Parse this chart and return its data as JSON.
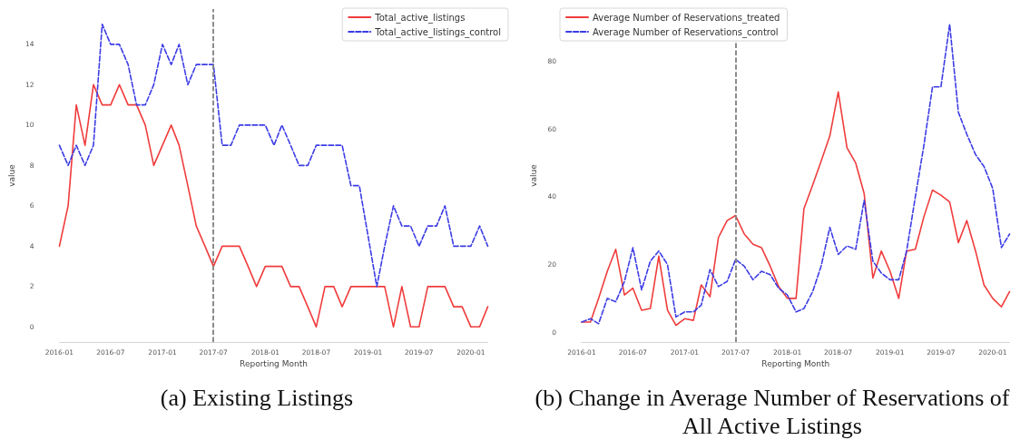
{
  "chart_data": [
    {
      "type": "line",
      "title": "(a) Existing Listings",
      "xlabel": "Reporting Month",
      "ylabel": "value",
      "x": [
        "2016-01",
        "2016-02",
        "2016-03",
        "2016-04",
        "2016-05",
        "2016-06",
        "2016-07",
        "2016-08",
        "2016-09",
        "2016-10",
        "2016-11",
        "2016-12",
        "2017-01",
        "2017-02",
        "2017-03",
        "2017-04",
        "2017-05",
        "2017-06",
        "2017-07",
        "2017-08",
        "2017-09",
        "2017-10",
        "2017-11",
        "2017-12",
        "2018-01",
        "2018-02",
        "2018-03",
        "2018-04",
        "2018-05",
        "2018-06",
        "2018-07",
        "2018-08",
        "2018-09",
        "2018-10",
        "2018-11",
        "2018-12",
        "2019-01",
        "2019-02",
        "2019-03",
        "2019-04",
        "2019-05",
        "2019-06",
        "2019-07",
        "2019-08",
        "2019-09",
        "2019-10",
        "2019-11",
        "2019-12",
        "2020-01",
        "2020-02",
        "2020-03"
      ],
      "series": [
        {
          "name": "Total_active_listings",
          "color": "#f03c3c",
          "line_style": "solid",
          "values": [
            4,
            6,
            11,
            9,
            12,
            11,
            11,
            12,
            11,
            11,
            10,
            8,
            9,
            10,
            9,
            7,
            5,
            4,
            3,
            4,
            4,
            4,
            3,
            2,
            3,
            3,
            3,
            2,
            2,
            1,
            0,
            2,
            2,
            1,
            2,
            2,
            2,
            2,
            2,
            0,
            2,
            0,
            0,
            2,
            2,
            2,
            1,
            1,
            0,
            0,
            1
          ]
        },
        {
          "name": "Total_active_listings_control",
          "color": "#3c3ce6",
          "line_style": "dashed",
          "values": [
            9,
            8,
            9,
            8,
            9,
            15,
            14,
            14,
            13,
            11,
            11,
            12,
            14,
            13,
            14,
            12,
            13,
            13,
            13,
            9,
            9,
            10,
            10,
            10,
            10,
            9,
            10,
            9,
            8,
            8,
            9,
            9,
            9,
            9,
            7,
            7,
            4.5,
            2,
            4,
            6,
            5,
            5,
            4,
            5,
            5,
            6,
            4,
            4,
            4,
            5,
            4
          ]
        }
      ],
      "xlim": [
        "2016-01",
        "2020-03"
      ],
      "xticks": [
        "2016-01",
        "2016-07",
        "2017-01",
        "2017-07",
        "2018-01",
        "2018-07",
        "2019-01",
        "2019-07",
        "2020-01"
      ],
      "ylim": [
        -0.75,
        15.75
      ],
      "yticks": [
        0,
        2,
        4,
        6,
        8,
        10,
        12,
        14
      ],
      "ref_lines": [
        {
          "axis": "x",
          "value": "2017-07",
          "color": "#808080",
          "line_style": "dashed"
        }
      ],
      "grid": false,
      "legend": "top right",
      "marker": "none"
    },
    {
      "type": "line",
      "title": "(b) Change in Average Number of Reservations of All Active Listings",
      "xlabel": "Reporting Month",
      "ylabel": "value",
      "x": [
        "2016-01",
        "2016-02",
        "2016-03",
        "2016-04",
        "2016-05",
        "2016-06",
        "2016-07",
        "2016-08",
        "2016-09",
        "2016-10",
        "2016-11",
        "2016-12",
        "2017-01",
        "2017-02",
        "2017-03",
        "2017-04",
        "2017-05",
        "2017-06",
        "2017-07",
        "2017-08",
        "2017-09",
        "2017-10",
        "2017-11",
        "2017-12",
        "2018-01",
        "2018-02",
        "2018-03",
        "2018-04",
        "2018-05",
        "2018-06",
        "2018-07",
        "2018-08",
        "2018-09",
        "2018-10",
        "2018-11",
        "2018-12",
        "2019-01",
        "2019-02",
        "2019-03",
        "2019-04",
        "2019-05",
        "2019-06",
        "2019-07",
        "2019-08",
        "2019-09",
        "2019-10",
        "2019-11",
        "2019-12",
        "2020-01",
        "2020-02",
        "2020-03"
      ],
      "series": [
        {
          "name": "Average Number of Reservations_treated",
          "color": "#f03c3c",
          "line_style": "solid",
          "values": [
            3,
            3,
            10,
            18,
            24.5,
            11,
            13,
            6.5,
            7,
            22.5,
            6.5,
            2,
            4,
            3.5,
            14,
            10.5,
            28,
            33,
            34.5,
            29,
            26,
            25,
            19.5,
            13.5,
            10,
            10,
            36.5,
            43.5,
            50.5,
            58,
            71,
            54.5,
            50,
            41,
            16,
            24,
            18,
            10,
            24,
            24.5,
            34,
            42,
            40.5,
            38.5,
            26.5,
            33,
            24,
            14,
            10,
            7.5,
            12
          ]
        },
        {
          "name": "Average Number of Reservations_control",
          "color": "#3c3ce6",
          "line_style": "dashed",
          "values": [
            3,
            4,
            2.5,
            10,
            9,
            15,
            25,
            12.5,
            21,
            24,
            20,
            4.5,
            6,
            6,
            8,
            18.5,
            13.5,
            15,
            21.5,
            19.5,
            15.5,
            18,
            17,
            13,
            11,
            6,
            7,
            12,
            19.5,
            31,
            23,
            25.5,
            24.5,
            39,
            21,
            17.5,
            15.5,
            15.5,
            24,
            40,
            55,
            72.5,
            72.5,
            91,
            65,
            58.5,
            52.5,
            49,
            42.5,
            25,
            29
          ]
        }
      ],
      "xlim": [
        "2016-01",
        "2020-03"
      ],
      "xticks": [
        "2016-01",
        "2016-07",
        "2017-01",
        "2017-07",
        "2018-01",
        "2018-07",
        "2019-01",
        "2019-07",
        "2020-01"
      ],
      "ylim": [
        -2.9,
        95.5
      ],
      "yticks": [
        0,
        20,
        40,
        60,
        80
      ],
      "ref_lines": [
        {
          "axis": "x",
          "value": "2017-07",
          "color": "#808080",
          "line_style": "dashed"
        }
      ],
      "grid": false,
      "legend": "top left",
      "marker": "none"
    }
  ]
}
